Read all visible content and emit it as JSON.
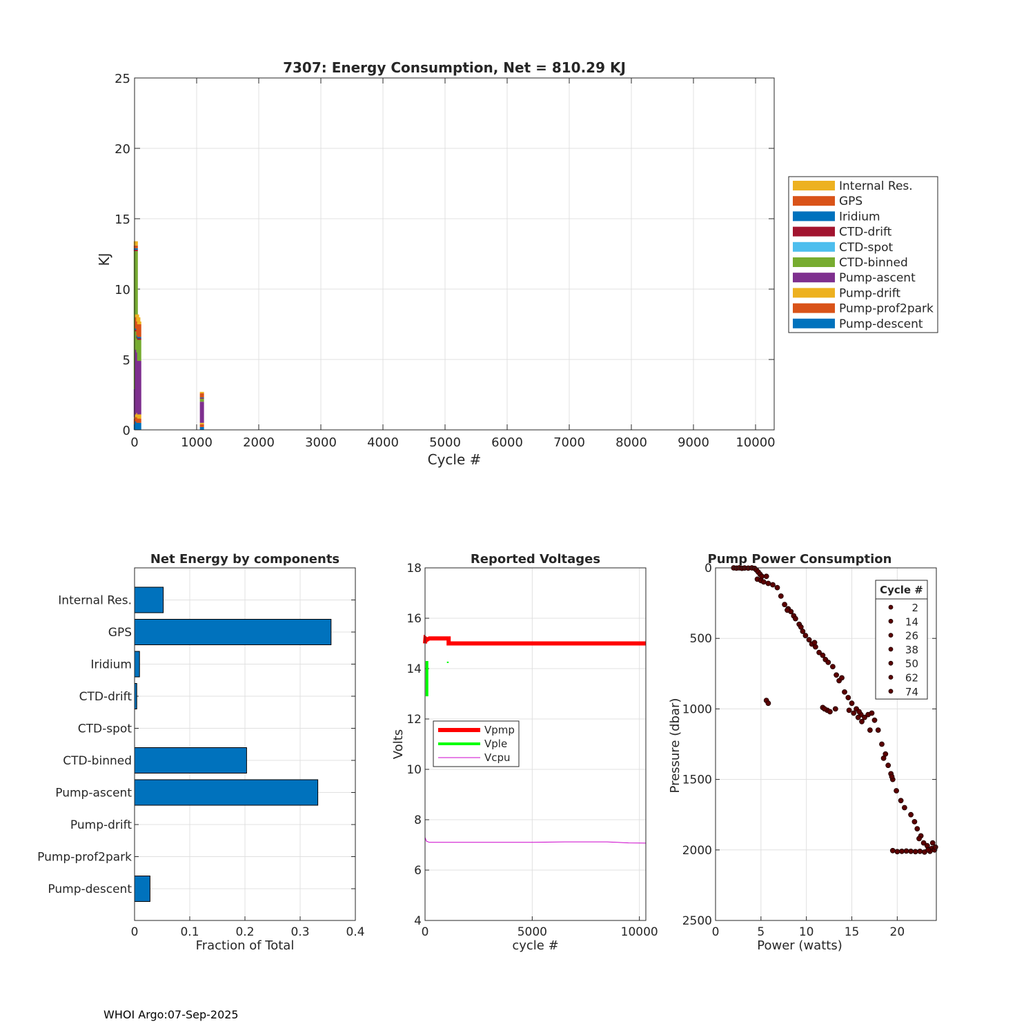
{
  "footer": "WHOI Argo:07-Sep-2025",
  "chart_data": [
    {
      "id": "energy",
      "type": "bar",
      "stacked": true,
      "title": "7307: Energy Consumption,  Net = 810.29 KJ",
      "xlabel": "Cycle #",
      "ylabel": "KJ",
      "xlim": [
        0,
        10300
      ],
      "ylim": [
        0,
        25
      ],
      "xticks": [
        0,
        1000,
        2000,
        3000,
        4000,
        5000,
        6000,
        7000,
        8000,
        9000,
        10000
      ],
      "yticks": [
        0,
        5,
        10,
        15,
        20,
        25
      ],
      "grid": true,
      "legend_position": "outside-right",
      "series": [
        {
          "name": "Internal Res.",
          "color": "#EDB120"
        },
        {
          "name": "GPS",
          "color": "#D95319"
        },
        {
          "name": "Iridium",
          "color": "#0072BD"
        },
        {
          "name": "CTD-drift",
          "color": "#A2142F"
        },
        {
          "name": "CTD-spot",
          "color": "#4DBEEE"
        },
        {
          "name": "CTD-binned",
          "color": "#77AC30"
        },
        {
          "name": "Pump-ascent",
          "color": "#7E2F8E"
        },
        {
          "name": "Pump-drift",
          "color": "#EDB120"
        },
        {
          "name": "Pump-prof2park",
          "color": "#D95319"
        },
        {
          "name": "Pump-descent",
          "color": "#0072BD"
        }
      ],
      "cycles": [
        {
          "cycle": 20,
          "values": [
            0.3,
            0.2,
            0.1,
            0.1,
            0,
            9.8,
            2.0,
            0.1,
            0.4,
            0.4
          ]
        },
        {
          "cycle": 40,
          "values": [
            0.2,
            0.8,
            0.1,
            0.1,
            0,
            1.3,
            4.6,
            0.2,
            0.3,
            0.6
          ]
        },
        {
          "cycle": 60,
          "values": [
            0.3,
            1.0,
            0.1,
            0.1,
            0,
            1.0,
            4.3,
            0.3,
            0.4,
            0.5
          ]
        },
        {
          "cycle": 75,
          "values": [
            0.2,
            0.9,
            0.1,
            0.1,
            0,
            1.5,
            3.8,
            0.3,
            0.3,
            0.5
          ]
        },
        {
          "cycle": 1085,
          "values": [
            0.1,
            0.3,
            0.05,
            0.05,
            0,
            0.2,
            1.5,
            0.1,
            0.2,
            0.2
          ]
        }
      ]
    },
    {
      "id": "components",
      "type": "barh",
      "title": "Net Energy by components",
      "xlabel": "Fraction of Total",
      "xlim": [
        0,
        0.4
      ],
      "xticks": [
        0,
        0.1,
        0.2,
        0.3,
        0.4
      ],
      "xticklabels": [
        "0",
        "0.1",
        "0.2",
        "0.3",
        "0.4"
      ],
      "grid": true,
      "bar_color": "#0072BD",
      "categories": [
        "Internal Res.",
        "GPS",
        "Iridium",
        "CTD-drift",
        "CTD-spot",
        "CTD-binned",
        "Pump-ascent",
        "Pump-drift",
        "Pump-prof2park",
        "Pump-descent"
      ],
      "values": [
        0.052,
        0.356,
        0.009,
        0.004,
        0.0,
        0.203,
        0.332,
        0.0,
        0.0,
        0.028
      ]
    },
    {
      "id": "voltages",
      "type": "line",
      "title": "Reported Voltages",
      "xlabel": "cycle #",
      "ylabel": "Volts",
      "xlim": [
        0,
        10300
      ],
      "ylim": [
        4,
        18
      ],
      "xticks": [
        0,
        5000,
        10000
      ],
      "yticks": [
        4,
        6,
        8,
        10,
        12,
        14,
        16,
        18
      ],
      "grid": true,
      "legend_position": "mid-left",
      "series": [
        {
          "name": "Vpmp",
          "color": "#FF0000",
          "width": 6,
          "points": [
            [
              0,
              15.0
            ],
            [
              20,
              15.2
            ],
            [
              100,
              15.15
            ],
            [
              200,
              15.2
            ],
            [
              1100,
              15.2
            ],
            [
              1100,
              15.0
            ],
            [
              10300,
              15.0
            ]
          ]
        },
        {
          "name": "Vple",
          "color": "#00FF00",
          "width": 4,
          "points": [
            [
              90,
              12.9
            ],
            [
              90,
              14.3
            ]
          ]
        },
        {
          "name": "Vcpu",
          "color": "#CC00CC",
          "width": 1,
          "points": [
            [
              0,
              7.3
            ],
            [
              60,
              7.15
            ],
            [
              200,
              7.1
            ],
            [
              2000,
              7.1
            ],
            [
              5000,
              7.1
            ],
            [
              6500,
              7.12
            ],
            [
              8500,
              7.12
            ],
            [
              9500,
              7.08
            ],
            [
              10300,
              7.07
            ]
          ]
        }
      ],
      "extra_marks": [
        {
          "series": "Vple",
          "x": [
            1020,
            1100
          ],
          "y": 14.25
        }
      ]
    },
    {
      "id": "pump",
      "type": "scatter",
      "title": "Pump Power Consumption",
      "xlabel": "Power (watts)",
      "ylabel": "Pressure (dbar)",
      "xlim": [
        0,
        24.3
      ],
      "ylim": [
        0,
        2500
      ],
      "y_reversed": true,
      "xticks": [
        0,
        5,
        10,
        15,
        20
      ],
      "yticks": [
        0,
        500,
        1000,
        1500,
        2000,
        2500
      ],
      "grid": true,
      "marker_color": "#5A0000",
      "legend_title": "Cycle #",
      "legend_entries": [
        "2",
        "14",
        "26",
        "38",
        "50",
        "62",
        "74"
      ],
      "points": [
        [
          2.0,
          0
        ],
        [
          2.3,
          2
        ],
        [
          2.6,
          0
        ],
        [
          2.9,
          3
        ],
        [
          3.2,
          1
        ],
        [
          3.6,
          2
        ],
        [
          4.0,
          0
        ],
        [
          4.3,
          4
        ],
        [
          4.5,
          15
        ],
        [
          4.7,
          30
        ],
        [
          4.9,
          45
        ],
        [
          5.1,
          60
        ],
        [
          4.6,
          80
        ],
        [
          5.0,
          90
        ],
        [
          5.3,
          100
        ],
        [
          5.6,
          60
        ],
        [
          5.8,
          110
        ],
        [
          6.3,
          120
        ],
        [
          6.8,
          140
        ],
        [
          7.2,
          200
        ],
        [
          7.6,
          260
        ],
        [
          8.0,
          290
        ],
        [
          8.3,
          310
        ],
        [
          8.6,
          340
        ],
        [
          8.8,
          360
        ],
        [
          9.2,
          400
        ],
        [
          9.6,
          450
        ],
        [
          9.9,
          480
        ],
        [
          10.3,
          510
        ],
        [
          10.6,
          540
        ],
        [
          11.0,
          560
        ],
        [
          11.4,
          600
        ],
        [
          11.8,
          620
        ],
        [
          12.1,
          650
        ],
        [
          12.4,
          670
        ],
        [
          12.9,
          700
        ],
        [
          13.3,
          760
        ],
        [
          13.6,
          800
        ],
        [
          14.2,
          880
        ],
        [
          14.6,
          920
        ],
        [
          15.0,
          960
        ],
        [
          15.5,
          1000
        ],
        [
          16.0,
          1040
        ],
        [
          16.4,
          1060
        ],
        [
          16.8,
          1040
        ],
        [
          17.2,
          1030
        ],
        [
          17.5,
          1080
        ],
        [
          17.9,
          1150
        ],
        [
          18.3,
          1250
        ],
        [
          18.7,
          1320
        ],
        [
          19.0,
          1400
        ],
        [
          19.3,
          1460
        ],
        [
          19.5,
          1500
        ],
        [
          19.9,
          1580
        ],
        [
          20.4,
          1650
        ],
        [
          20.8,
          1700
        ],
        [
          21.5,
          1750
        ],
        [
          21.9,
          1800
        ],
        [
          22.2,
          1850
        ],
        [
          22.6,
          1900
        ],
        [
          22.9,
          1950
        ],
        [
          23.3,
          1970
        ],
        [
          23.8,
          1990
        ],
        [
          24.1,
          2000
        ],
        [
          23.6,
          2010
        ],
        [
          23.0,
          2015
        ],
        [
          22.5,
          2010
        ],
        [
          22.0,
          2012
        ],
        [
          21.5,
          2010
        ],
        [
          21.0,
          2008
        ],
        [
          20.5,
          2010
        ],
        [
          20.0,
          2012
        ],
        [
          19.5,
          2005
        ],
        [
          5.6,
          940
        ],
        [
          5.8,
          960
        ],
        [
          11.8,
          990
        ],
        [
          12.3,
          1010
        ],
        [
          12.6,
          1020
        ],
        [
          13.2,
          1000
        ],
        [
          14.7,
          1010
        ],
        [
          15.2,
          1030
        ],
        [
          15.7,
          1060
        ],
        [
          16.1,
          1090
        ],
        [
          12.0,
          1000
        ],
        [
          15.8,
          1020
        ],
        [
          17.0,
          1150
        ],
        [
          18.5,
          1350
        ],
        [
          19.4,
          1480
        ],
        [
          22.4,
          1920
        ],
        [
          23.9,
          1950
        ],
        [
          24.2,
          1980
        ],
        [
          23.4,
          2000
        ],
        [
          9.4,
          420
        ],
        [
          7.9,
          300
        ],
        [
          10.9,
          530
        ],
        [
          13.9,
          780
        ]
      ]
    }
  ]
}
